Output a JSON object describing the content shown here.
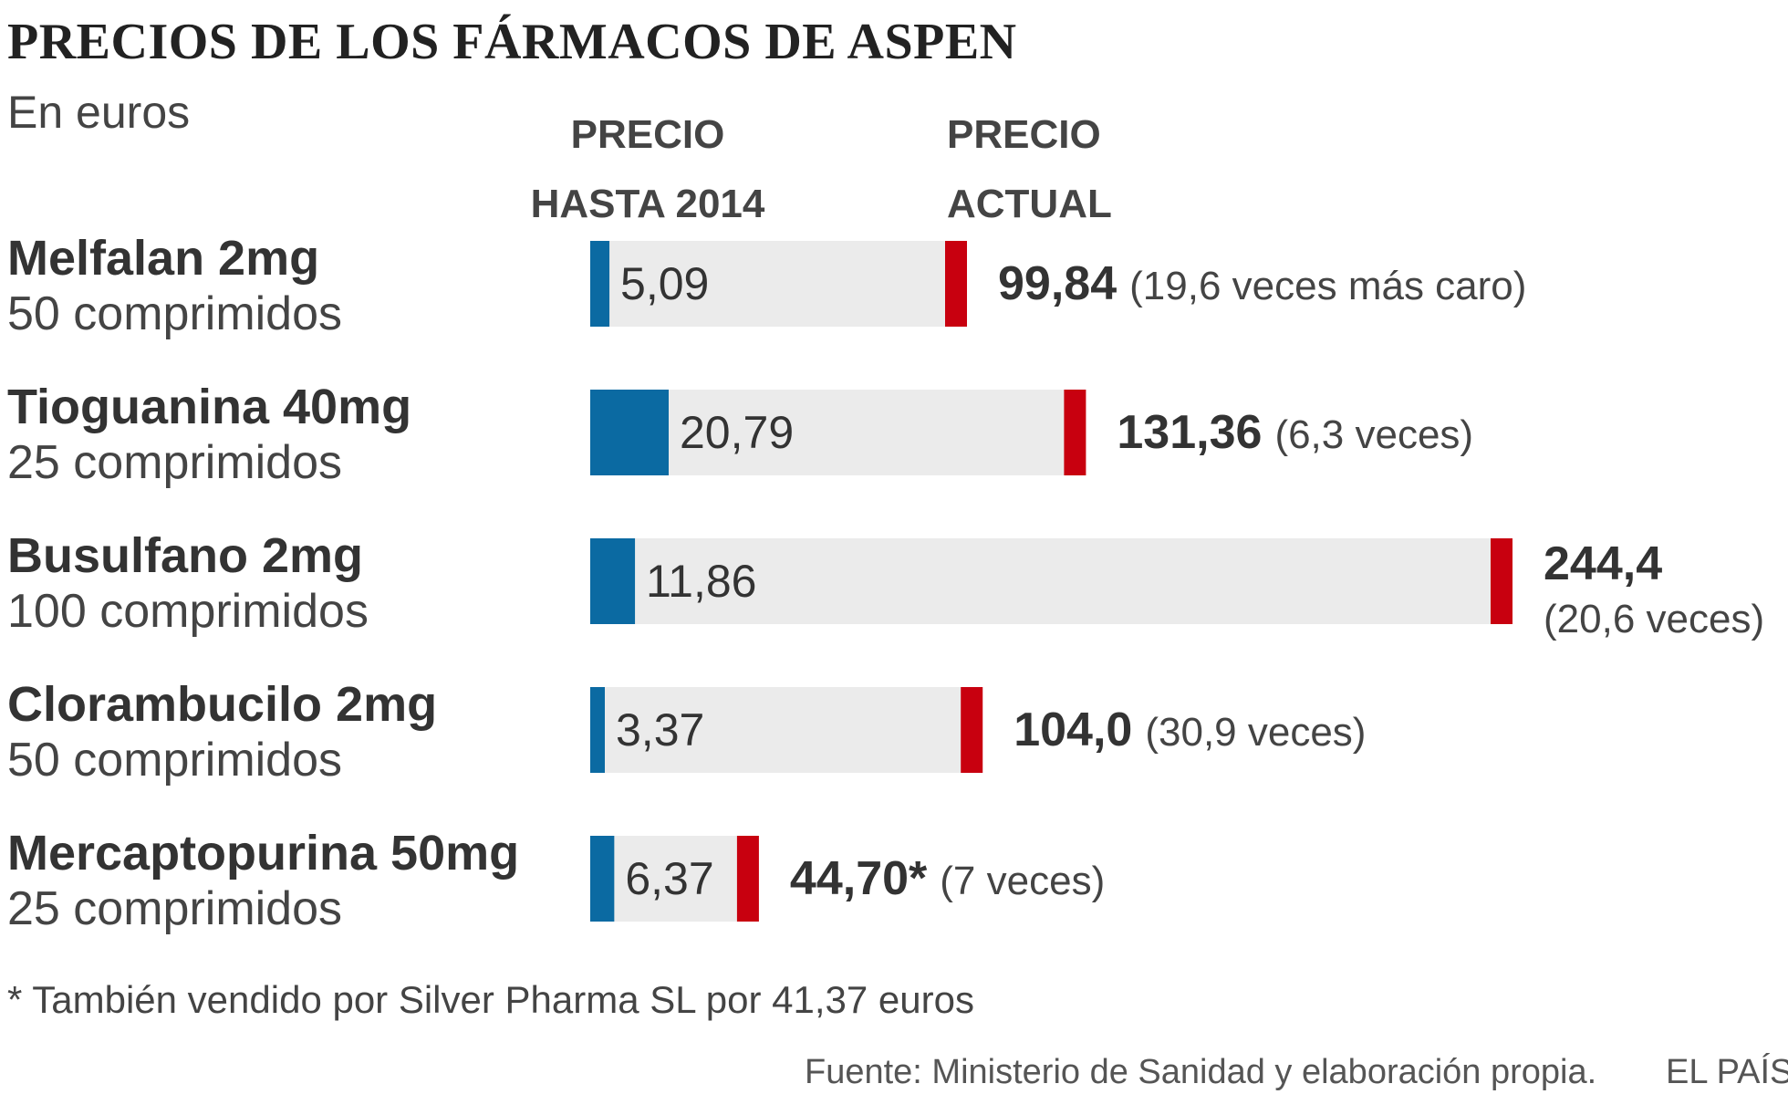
{
  "header": {
    "title": "PRECIOS DE LOS FÁRMACOS DE ASPEN",
    "subtitle": "En euros",
    "col_old": "PRECIO\nHASTA 2014",
    "col_new": "PRECIO\nACTUAL"
  },
  "rows": [
    {
      "name": "Melfalan 2mg",
      "pack": "50 comprimidos",
      "old_label": "5,09",
      "new_label": "99,84",
      "note": "(19,6 veces más caro)"
    },
    {
      "name": "Tioguanina 40mg",
      "pack": "25 comprimidos",
      "old_label": "20,79",
      "new_label": "131,36",
      "note": "(6,3 veces)"
    },
    {
      "name": "Busulfano 2mg",
      "pack": "100 comprimidos",
      "old_label": "11,86",
      "new_label": "244,4",
      "note": "(20,6 veces)"
    },
    {
      "name": "Clorambucilo 2mg",
      "pack": "50 comprimidos",
      "old_label": "3,37",
      "new_label": "104,0",
      "note": "(30,9 veces)"
    },
    {
      "name": "Mercaptopurina 50mg",
      "pack": "25 comprimidos",
      "old_label": "6,37",
      "new_label": "44,70*",
      "note": "(7 veces)"
    }
  ],
  "footnote": "* También vendido por Silver Pharma SL por 41,37 euros",
  "source": "Fuente: Ministerio de Sanidad y elaboración propia.",
  "brand": "EL PAÍS",
  "colors": {
    "old_price": "#0b6aa2",
    "new_price": "#c8000f",
    "track": "#ebebeb"
  },
  "chart_data": {
    "type": "bar",
    "categories": [
      "Melfalan 2mg",
      "Tioguanina 40mg",
      "Busulfano 2mg",
      "Clorambucilo 2mg",
      "Mercaptopurina 50mg"
    ],
    "series": [
      {
        "name": "PRECIO HASTA 2014",
        "values": [
          5.09,
          20.79,
          11.86,
          3.37,
          6.37
        ]
      },
      {
        "name": "PRECIO ACTUAL",
        "values": [
          99.84,
          131.36,
          244.4,
          104.0,
          44.7
        ]
      }
    ],
    "orientation": "horizontal",
    "xlim": [
      0,
      244.4
    ],
    "grid": false
  }
}
